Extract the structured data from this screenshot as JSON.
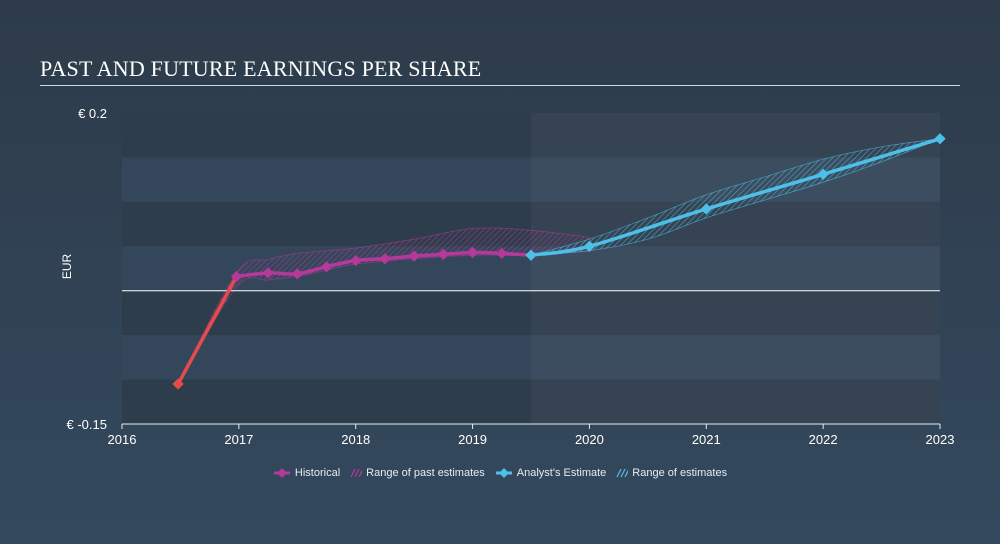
{
  "chart_data": {
    "type": "line",
    "title": "PAST AND FUTURE EARNINGS PER SHARE",
    "ylabel": "EUR",
    "ylim": [
      -0.15,
      0.2
    ],
    "yticks": [
      {
        "value": 0.2,
        "label": "€ 0.2"
      },
      {
        "value": -0.15,
        "label": "€ -0.15"
      }
    ],
    "xlim": [
      2016,
      2023
    ],
    "xticks": [
      "2016",
      "2017",
      "2018",
      "2019",
      "2020",
      "2021",
      "2022",
      "2023"
    ],
    "zero_line": 0,
    "series": [
      {
        "name": "Historical",
        "color": "#b5399b",
        "early_color": "#e64b4b",
        "x": [
          2016.48,
          2016.98,
          2017.25,
          2017.5,
          2017.75,
          2018.0,
          2018.25,
          2018.5,
          2018.75,
          2019.0,
          2019.25,
          2019.5
        ],
        "y": [
          -0.105,
          0.016,
          0.02,
          0.019,
          0.027,
          0.034,
          0.036,
          0.039,
          0.041,
          0.043,
          0.042,
          0.04
        ]
      },
      {
        "name": "Analyst's Estimate",
        "color": "#4ec0e8",
        "x": [
          2019.5,
          2020.0,
          2021.0,
          2022.0,
          2023.0
        ],
        "y": [
          0.04,
          0.05,
          0.092,
          0.131,
          0.171
        ]
      }
    ],
    "ranges": [
      {
        "name": "Range of past estimates",
        "color": "#b5399b",
        "x": [
          2016.48,
          2016.98,
          2017.25,
          2017.5,
          2017.75,
          2018.0,
          2018.5,
          2019.0,
          2019.5,
          2020.0
        ],
        "high": [
          -0.105,
          0.02,
          0.035,
          0.042,
          0.045,
          0.048,
          0.058,
          0.07,
          0.068,
          0.06
        ],
        "low": [
          -0.105,
          0.004,
          0.012,
          0.016,
          0.023,
          0.03,
          0.036,
          0.04,
          0.04,
          0.045
        ]
      },
      {
        "name": "Range of estimates",
        "color": "#4ec0e8",
        "x": [
          2019.5,
          2020.0,
          2020.5,
          2021.0,
          2021.5,
          2022.0,
          2022.5,
          2023.0
        ],
        "high": [
          0.04,
          0.058,
          0.082,
          0.108,
          0.128,
          0.148,
          0.162,
          0.171
        ],
        "low": [
          0.04,
          0.045,
          0.058,
          0.082,
          0.102,
          0.122,
          0.145,
          0.171
        ]
      }
    ],
    "legend": [
      {
        "label": "Historical",
        "kind": "line",
        "color": "#b5399b"
      },
      {
        "label": "Range of past estimates",
        "kind": "hatch",
        "color": "#b5399b"
      },
      {
        "label": "Analyst's Estimate",
        "kind": "line",
        "color": "#4ec0e8"
      },
      {
        "label": "Range of estimates",
        "kind": "hatch",
        "color": "#4ec0e8"
      }
    ]
  }
}
